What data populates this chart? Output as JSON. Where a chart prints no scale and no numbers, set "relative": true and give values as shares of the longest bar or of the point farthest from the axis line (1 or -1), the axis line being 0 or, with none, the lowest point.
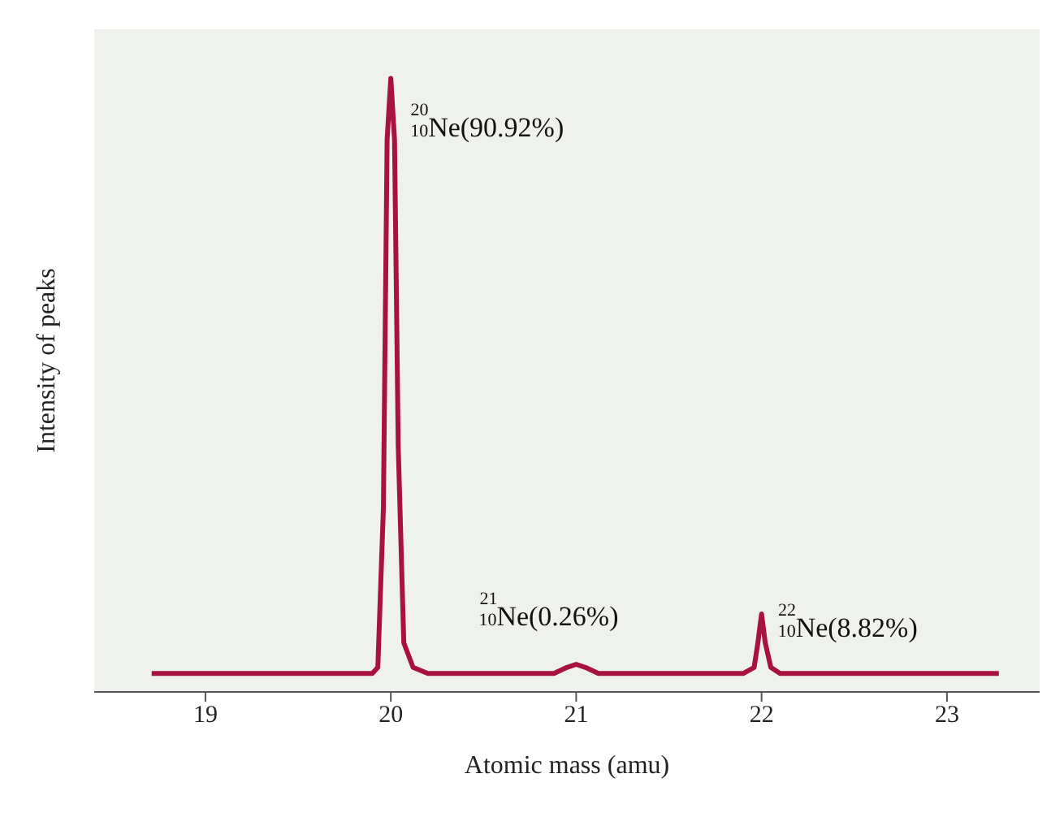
{
  "chart_data": {
    "type": "line",
    "relative": true,
    "xlabel": "Atomic mass (amu)",
    "ylabel": "Intensity of peaks",
    "xlim": [
      18.4,
      23.5
    ],
    "xticks": [
      19,
      20,
      21,
      22,
      23
    ],
    "grid": false,
    "marker": "none",
    "line_style": "solid",
    "series": [
      {
        "color": "#a8123e",
        "x": [
          18.71,
          19.9,
          19.93,
          19.96,
          19.98,
          20.0,
          20.02,
          20.04,
          20.07,
          20.12,
          20.2,
          20.88,
          20.95,
          21.0,
          21.05,
          21.12,
          21.9,
          21.96,
          21.98,
          22.0,
          22.02,
          22.05,
          22.1,
          23.28
        ],
        "values": [
          0.03,
          0.03,
          0.04,
          0.3,
          0.9,
          1,
          0.9,
          0.4,
          0.08,
          0.04,
          0.03,
          0.03,
          0.04,
          0.045,
          0.04,
          0.03,
          0.03,
          0.04,
          0.08,
          0.127,
          0.08,
          0.04,
          0.03,
          0.03
        ]
      }
    ],
    "annotations": [
      {
        "text": "$^{20}$$_{10}$Ne(90.92%)",
        "x": 20,
        "y": 1
      },
      {
        "text": "$^{21}$$_{10}$Ne(0.26%)",
        "x": 21,
        "y": 0.045
      },
      {
        "text": "$^{22}$$_{10}$Ne(8.82%)",
        "x": 22,
        "y": 0.127
      }
    ]
  }
}
